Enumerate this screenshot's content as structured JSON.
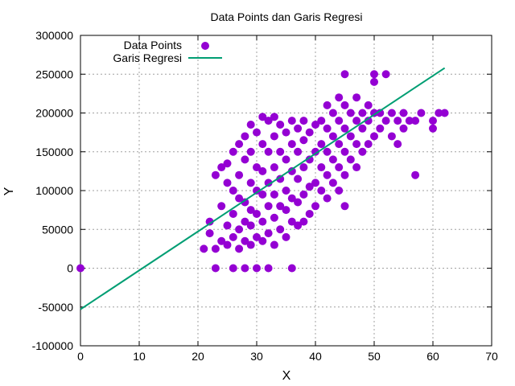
{
  "chart_data": {
    "type": "scatter",
    "title": "Data Points dan Garis Regresi",
    "xlabel": "X",
    "ylabel": "Y",
    "xlim": [
      0,
      70
    ],
    "ylim": [
      -100000,
      300000
    ],
    "xticks": [
      0,
      10,
      20,
      30,
      40,
      50,
      60,
      70
    ],
    "yticks": [
      -100000,
      -50000,
      0,
      50000,
      100000,
      150000,
      200000,
      250000,
      300000
    ],
    "grid": true,
    "legend_position": "top-left",
    "series": [
      {
        "name": "Data Points",
        "kind": "points",
        "color": "#9400d3",
        "points": [
          [
            0,
            0
          ],
          [
            21,
            25000
          ],
          [
            22,
            45000
          ],
          [
            22,
            60000
          ],
          [
            23,
            25000
          ],
          [
            23,
            0
          ],
          [
            23,
            120000
          ],
          [
            24,
            35000
          ],
          [
            24,
            80000
          ],
          [
            24,
            130000
          ],
          [
            25,
            30000
          ],
          [
            25,
            55000
          ],
          [
            25,
            110000
          ],
          [
            25,
            135000
          ],
          [
            26,
            0
          ],
          [
            26,
            40000
          ],
          [
            26,
            70000
          ],
          [
            26,
            100000
          ],
          [
            26,
            150000
          ],
          [
            27,
            25000
          ],
          [
            27,
            50000
          ],
          [
            27,
            90000
          ],
          [
            27,
            120000
          ],
          [
            27,
            160000
          ],
          [
            28,
            0
          ],
          [
            28,
            35000
          ],
          [
            28,
            60000
          ],
          [
            28,
            85000
          ],
          [
            28,
            140000
          ],
          [
            28,
            170000
          ],
          [
            29,
            30000
          ],
          [
            29,
            55000
          ],
          [
            29,
            75000
          ],
          [
            29,
            110000
          ],
          [
            29,
            150000
          ],
          [
            29,
            185000
          ],
          [
            30,
            0
          ],
          [
            30,
            40000
          ],
          [
            30,
            70000
          ],
          [
            30,
            100000
          ],
          [
            30,
            130000
          ],
          [
            30,
            175000
          ],
          [
            31,
            35000
          ],
          [
            31,
            60000
          ],
          [
            31,
            95000
          ],
          [
            31,
            125000
          ],
          [
            31,
            160000
          ],
          [
            31,
            195000
          ],
          [
            32,
            0
          ],
          [
            32,
            45000
          ],
          [
            32,
            80000
          ],
          [
            32,
            110000
          ],
          [
            32,
            150000
          ],
          [
            32,
            190000
          ],
          [
            33,
            30000
          ],
          [
            33,
            65000
          ],
          [
            33,
            95000
          ],
          [
            33,
            130000
          ],
          [
            33,
            170000
          ],
          [
            33,
            195000
          ],
          [
            34,
            50000
          ],
          [
            34,
            80000
          ],
          [
            34,
            115000
          ],
          [
            34,
            150000
          ],
          [
            34,
            185000
          ],
          [
            35,
            40000
          ],
          [
            35,
            75000
          ],
          [
            35,
            100000
          ],
          [
            35,
            140000
          ],
          [
            35,
            175000
          ],
          [
            36,
            0
          ],
          [
            36,
            60000
          ],
          [
            36,
            90000
          ],
          [
            36,
            125000
          ],
          [
            36,
            160000
          ],
          [
            36,
            190000
          ],
          [
            37,
            55000
          ],
          [
            37,
            85000
          ],
          [
            37,
            115000
          ],
          [
            37,
            150000
          ],
          [
            37,
            180000
          ],
          [
            38,
            60000
          ],
          [
            38,
            95000
          ],
          [
            38,
            130000
          ],
          [
            38,
            165000
          ],
          [
            38,
            190000
          ],
          [
            39,
            70000
          ],
          [
            39,
            105000
          ],
          [
            39,
            140000
          ],
          [
            39,
            175000
          ],
          [
            40,
            80000
          ],
          [
            40,
            110000
          ],
          [
            40,
            150000
          ],
          [
            40,
            185000
          ],
          [
            41,
            100000
          ],
          [
            41,
            130000
          ],
          [
            41,
            160000
          ],
          [
            41,
            190000
          ],
          [
            42,
            90000
          ],
          [
            42,
            120000
          ],
          [
            42,
            150000
          ],
          [
            42,
            180000
          ],
          [
            42,
            210000
          ],
          [
            43,
            110000
          ],
          [
            43,
            140000
          ],
          [
            43,
            170000
          ],
          [
            43,
            200000
          ],
          [
            44,
            100000
          ],
          [
            44,
            130000
          ],
          [
            44,
            160000
          ],
          [
            44,
            190000
          ],
          [
            44,
            220000
          ],
          [
            45,
            80000
          ],
          [
            45,
            120000
          ],
          [
            45,
            150000
          ],
          [
            45,
            180000
          ],
          [
            45,
            210000
          ],
          [
            45,
            250000
          ],
          [
            46,
            140000
          ],
          [
            46,
            170000
          ],
          [
            46,
            200000
          ],
          [
            47,
            130000
          ],
          [
            47,
            160000
          ],
          [
            47,
            190000
          ],
          [
            47,
            220000
          ],
          [
            48,
            150000
          ],
          [
            48,
            180000
          ],
          [
            48,
            200000
          ],
          [
            49,
            160000
          ],
          [
            49,
            190000
          ],
          [
            49,
            210000
          ],
          [
            50,
            170000
          ],
          [
            50,
            200000
          ],
          [
            50,
            240000
          ],
          [
            50,
            250000
          ],
          [
            51,
            180000
          ],
          [
            51,
            200000
          ],
          [
            52,
            190000
          ],
          [
            52,
            250000
          ],
          [
            53,
            170000
          ],
          [
            53,
            200000
          ],
          [
            54,
            160000
          ],
          [
            54,
            190000
          ],
          [
            55,
            180000
          ],
          [
            55,
            200000
          ],
          [
            56,
            190000
          ],
          [
            57,
            120000
          ],
          [
            57,
            190000
          ],
          [
            58,
            200000
          ],
          [
            60,
            190000
          ],
          [
            60,
            180000
          ],
          [
            61,
            200000
          ],
          [
            62,
            200000
          ]
        ]
      },
      {
        "name": "Garis Regresi",
        "kind": "line",
        "color": "#009e73",
        "points": [
          [
            0,
            -53000
          ],
          [
            62,
            258000
          ]
        ]
      }
    ]
  }
}
